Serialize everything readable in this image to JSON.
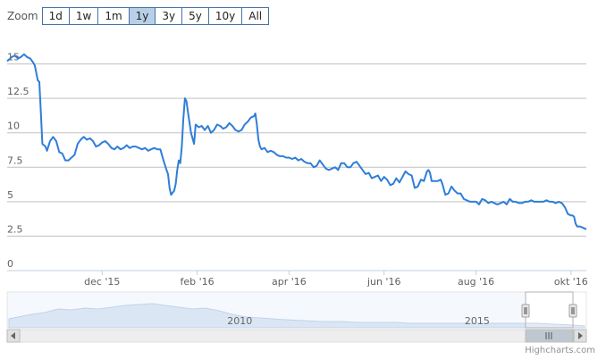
{
  "zoom": {
    "label": "Zoom",
    "buttons": [
      "1d",
      "1w",
      "1m",
      "1y",
      "3y",
      "5y",
      "10y",
      "All"
    ],
    "active": "1y"
  },
  "credits": "Highcharts.com",
  "chart_data": {
    "type": "line",
    "series": [
      {
        "values": [
          [
            0,
            15.2
          ],
          [
            3,
            15.5
          ],
          [
            5,
            15.6
          ],
          [
            7,
            15.4
          ],
          [
            9,
            15.5
          ],
          [
            11,
            15.7
          ],
          [
            13,
            15.5
          ],
          [
            15,
            15.4
          ],
          [
            17,
            15.1
          ],
          [
            18,
            14.9
          ],
          [
            20,
            13.8
          ],
          [
            21,
            13.7
          ],
          [
            22,
            11.5
          ],
          [
            23,
            9.2
          ],
          [
            25,
            9.0
          ],
          [
            26,
            8.7
          ],
          [
            28,
            9.4
          ],
          [
            30,
            9.7
          ],
          [
            32,
            9.4
          ],
          [
            34,
            8.6
          ],
          [
            36,
            8.5
          ],
          [
            38,
            8.0
          ],
          [
            40,
            8.0
          ],
          [
            42,
            8.2
          ],
          [
            44,
            8.4
          ],
          [
            46,
            9.2
          ],
          [
            48,
            9.5
          ],
          [
            50,
            9.7
          ],
          [
            52,
            9.5
          ],
          [
            54,
            9.6
          ],
          [
            56,
            9.4
          ],
          [
            58,
            9.0
          ],
          [
            60,
            9.1
          ],
          [
            62,
            9.3
          ],
          [
            64,
            9.4
          ],
          [
            66,
            9.2
          ],
          [
            68,
            8.9
          ],
          [
            70,
            8.8
          ],
          [
            72,
            9.0
          ],
          [
            74,
            8.8
          ],
          [
            76,
            8.9
          ],
          [
            78,
            9.1
          ],
          [
            80,
            8.9
          ],
          [
            82,
            9.0
          ],
          [
            84,
            9.0
          ],
          [
            86,
            8.9
          ],
          [
            88,
            8.8
          ],
          [
            90,
            8.9
          ],
          [
            92,
            8.7
          ],
          [
            94,
            8.8
          ],
          [
            96,
            8.9
          ],
          [
            98,
            8.8
          ],
          [
            100,
            8.8
          ],
          [
            102,
            8.0
          ],
          [
            104,
            7.3
          ],
          [
            105,
            7.0
          ],
          [
            106,
            6.0
          ],
          [
            107,
            5.5
          ],
          [
            109,
            5.8
          ],
          [
            110,
            6.3
          ],
          [
            111,
            7.3
          ],
          [
            112,
            8.0
          ],
          [
            113,
            7.8
          ],
          [
            114,
            9.0
          ],
          [
            115,
            11.0
          ],
          [
            116,
            12.5
          ],
          [
            117,
            12.3
          ],
          [
            118,
            11.5
          ],
          [
            120,
            10.0
          ],
          [
            122,
            9.2
          ],
          [
            123,
            10.6
          ],
          [
            125,
            10.4
          ],
          [
            127,
            10.5
          ],
          [
            129,
            10.2
          ],
          [
            131,
            10.5
          ],
          [
            133,
            10.0
          ],
          [
            135,
            10.2
          ],
          [
            137,
            10.6
          ],
          [
            139,
            10.5
          ],
          [
            141,
            10.3
          ],
          [
            143,
            10.4
          ],
          [
            145,
            10.7
          ],
          [
            147,
            10.5
          ],
          [
            149,
            10.2
          ],
          [
            151,
            10.1
          ],
          [
            153,
            10.2
          ],
          [
            155,
            10.6
          ],
          [
            157,
            10.8
          ],
          [
            159,
            11.1
          ],
          [
            161,
            11.2
          ],
          [
            162,
            11.4
          ],
          [
            163,
            10.6
          ],
          [
            164,
            9.5
          ],
          [
            165,
            9.0
          ],
          [
            166,
            8.8
          ],
          [
            168,
            8.9
          ],
          [
            170,
            8.6
          ],
          [
            172,
            8.7
          ],
          [
            174,
            8.6
          ],
          [
            176,
            8.4
          ],
          [
            178,
            8.3
          ],
          [
            180,
            8.3
          ],
          [
            182,
            8.2
          ],
          [
            184,
            8.2
          ],
          [
            186,
            8.1
          ],
          [
            188,
            8.2
          ],
          [
            190,
            8.0
          ],
          [
            192,
            8.1
          ],
          [
            194,
            7.9
          ],
          [
            196,
            7.8
          ],
          [
            198,
            7.8
          ],
          [
            200,
            7.5
          ],
          [
            202,
            7.6
          ],
          [
            204,
            8.0
          ],
          [
            206,
            7.7
          ],
          [
            208,
            7.4
          ],
          [
            210,
            7.3
          ],
          [
            212,
            7.4
          ],
          [
            214,
            7.5
          ],
          [
            216,
            7.3
          ],
          [
            218,
            7.8
          ],
          [
            220,
            7.8
          ],
          [
            222,
            7.5
          ],
          [
            224,
            7.5
          ],
          [
            226,
            7.8
          ],
          [
            228,
            7.9
          ],
          [
            230,
            7.6
          ],
          [
            232,
            7.3
          ],
          [
            234,
            7.0
          ],
          [
            236,
            7.1
          ],
          [
            238,
            6.7
          ],
          [
            240,
            6.8
          ],
          [
            242,
            6.9
          ],
          [
            244,
            6.5
          ],
          [
            246,
            6.8
          ],
          [
            248,
            6.6
          ],
          [
            250,
            6.2
          ],
          [
            252,
            6.3
          ],
          [
            254,
            6.7
          ],
          [
            256,
            6.4
          ],
          [
            258,
            6.8
          ],
          [
            260,
            7.2
          ],
          [
            262,
            7.0
          ],
          [
            264,
            6.9
          ],
          [
            266,
            6.0
          ],
          [
            268,
            6.1
          ],
          [
            270,
            6.6
          ],
          [
            272,
            6.5
          ],
          [
            274,
            7.2
          ],
          [
            275,
            7.3
          ],
          [
            276,
            7.1
          ],
          [
            277,
            6.5
          ],
          [
            279,
            6.5
          ],
          [
            281,
            6.5
          ],
          [
            283,
            6.6
          ],
          [
            284,
            6.3
          ],
          [
            286,
            5.5
          ],
          [
            288,
            5.6
          ],
          [
            290,
            6.1
          ],
          [
            292,
            5.8
          ],
          [
            294,
            5.6
          ],
          [
            296,
            5.6
          ],
          [
            298,
            5.2
          ],
          [
            300,
            5.1
          ],
          [
            302,
            5.0
          ],
          [
            304,
            5.0
          ],
          [
            306,
            5.0
          ],
          [
            308,
            4.8
          ],
          [
            310,
            5.2
          ],
          [
            312,
            5.1
          ],
          [
            314,
            4.9
          ],
          [
            316,
            5.0
          ],
          [
            318,
            4.9
          ],
          [
            320,
            4.8
          ],
          [
            322,
            4.9
          ],
          [
            324,
            5.0
          ],
          [
            326,
            4.8
          ],
          [
            328,
            5.2
          ],
          [
            330,
            5.0
          ],
          [
            332,
            5.0
          ],
          [
            334,
            4.9
          ],
          [
            336,
            4.9
          ],
          [
            338,
            5.0
          ],
          [
            340,
            5.0
          ],
          [
            342,
            5.1
          ],
          [
            344,
            5.0
          ],
          [
            346,
            5.0
          ],
          [
            348,
            5.0
          ],
          [
            350,
            5.0
          ],
          [
            352,
            5.1
          ],
          [
            354,
            5.0
          ],
          [
            356,
            5.0
          ],
          [
            358,
            4.9
          ],
          [
            360,
            5.0
          ],
          [
            362,
            4.9
          ],
          [
            364,
            4.6
          ],
          [
            366,
            4.1
          ],
          [
            368,
            4.0
          ],
          [
            369,
            4.0
          ],
          [
            370,
            3.9
          ],
          [
            371,
            3.4
          ],
          [
            372,
            3.2
          ],
          [
            374,
            3.2
          ],
          [
            376,
            3.1
          ],
          [
            378,
            3.0
          ]
        ]
      }
    ],
    "x_tick_labels": [
      "dec '15",
      "feb '16",
      "apr '16",
      "jun '16",
      "aug '16",
      "okt '16"
    ],
    "x_tick_positions": [
      62,
      124,
      184,
      246,
      306,
      368
    ],
    "y_tick_labels": [
      "0",
      "2.5",
      "5",
      "7.5",
      "10",
      "12.5",
      "15"
    ],
    "y_tick_values": [
      0,
      2.5,
      5,
      7.5,
      10,
      12.5,
      15
    ],
    "xlim": [
      0,
      378
    ],
    "ylim": [
      0,
      17.5
    ],
    "grid": true,
    "legend": "none",
    "line_color": "#2f7ed8",
    "navigator": {
      "labels": [
        "2010",
        "2015"
      ],
      "label_positions": [
        0.38,
        0.79
      ]
    }
  }
}
